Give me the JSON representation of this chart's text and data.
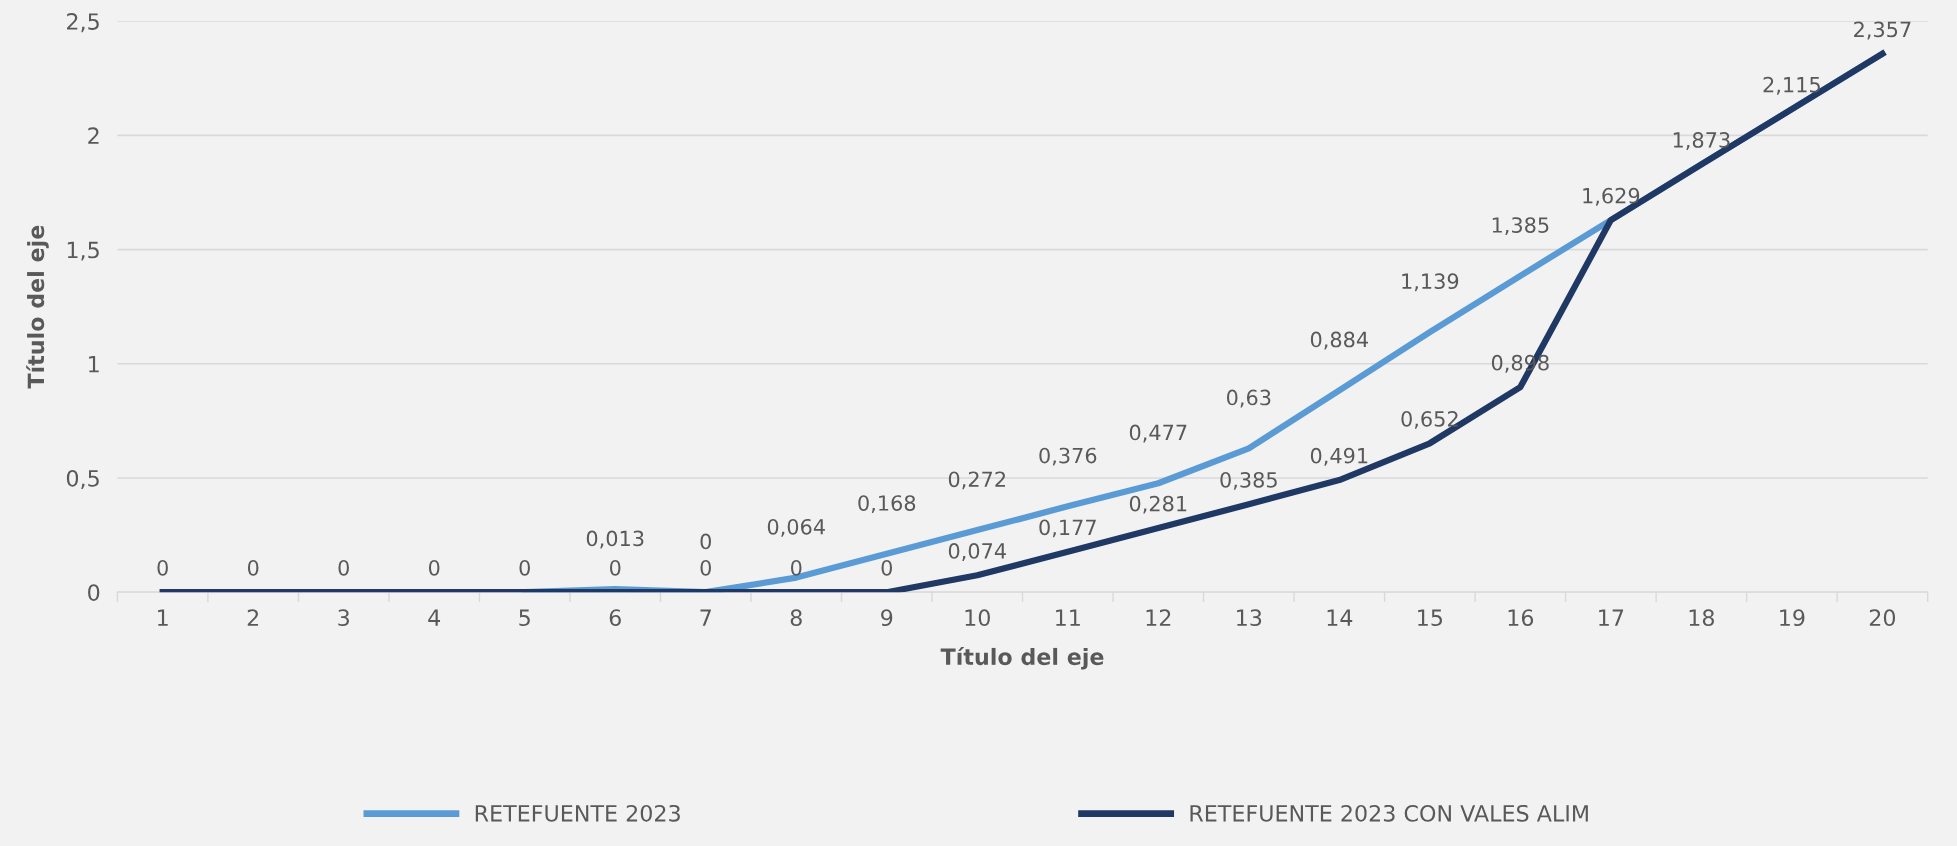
{
  "chart_data": {
    "type": "line",
    "xlabel": "Título del eje",
    "ylabel": "Título del eje",
    "categories": [
      "1",
      "2",
      "3",
      "4",
      "5",
      "6",
      "7",
      "8",
      "9",
      "10",
      "11",
      "12",
      "13",
      "14",
      "15",
      "16",
      "17",
      "18",
      "19",
      "20"
    ],
    "series": [
      {
        "name": "RETEFUENTE 2023",
        "color": "#5b9bd5",
        "values": [
          null,
          null,
          null,
          null,
          0,
          0.013,
          0,
          0.064,
          0.168,
          0.272,
          0.376,
          0.477,
          0.63,
          0.884,
          1.139,
          1.385,
          1.629,
          1.873,
          2.115,
          2.357
        ],
        "value_labels": [
          null,
          null,
          null,
          null,
          null,
          "0,013",
          "0",
          "0,064",
          "0,168",
          "0,272",
          "0,376",
          "0,477",
          "0,63",
          "0,884",
          "1,139",
          "1,385",
          null,
          null,
          null,
          null
        ]
      },
      {
        "name": "RETEFUENTE 2023 CON VALES ALIM",
        "color": "#203864",
        "values": [
          0,
          0,
          0,
          0,
          0,
          0,
          0,
          0,
          0,
          0.074,
          0.177,
          0.281,
          0.385,
          0.491,
          0.652,
          0.898,
          1.629,
          1.873,
          2.115,
          2.357
        ],
        "value_labels": [
          "0",
          "0",
          "0",
          "0",
          "0",
          "0",
          "0",
          "0",
          "0",
          "0,074",
          "0,177",
          "0,281",
          "0,385",
          "0,491",
          "0,652",
          "0,898",
          "1,629",
          "1,873",
          "2,115",
          "2,357"
        ]
      }
    ],
    "ylim": [
      0,
      2.5
    ],
    "yticks": [
      0,
      {
        "value": 0.5,
        "label": "0,5"
      },
      1,
      {
        "value": 1.5,
        "label": "1,5"
      },
      2,
      {
        "value": 2.5,
        "label": "2,5"
      }
    ],
    "grid": "y",
    "legend": "bottom",
    "marker": "none",
    "line_style": "solid"
  }
}
